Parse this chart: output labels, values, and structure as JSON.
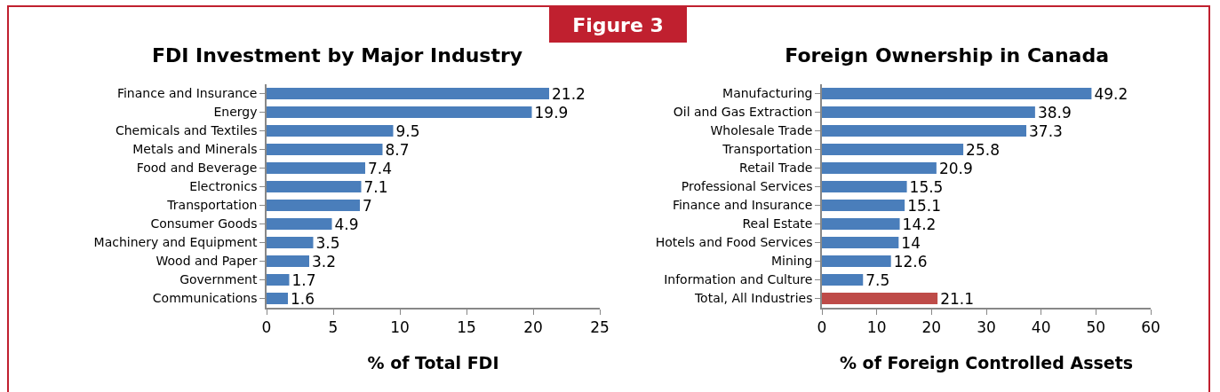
{
  "chart_data": [
    {
      "type": "bar",
      "orientation": "horizontal",
      "title": "FDI Investment by Major Industry",
      "xlabel": "% of Total FDI",
      "annotations": [
        "Figure 3"
      ],
      "categories": [
        "Finance and Insurance",
        "Energy",
        "Chemicals and Textiles",
        "Metals and Minerals",
        "Food and Beverage",
        "Electronics",
        "Transportation",
        "Consumer Goods",
        "Machinery and Equipment",
        "Wood and Paper",
        "Government",
        "Communications"
      ],
      "values": [
        21.2,
        19.9,
        9.5,
        8.7,
        7.4,
        7.1,
        7,
        4.9,
        3.5,
        3.2,
        1.7,
        1.6
      ],
      "color": "#4a7ebb",
      "xlim": [
        0,
        25
      ],
      "xticks": [
        0,
        5,
        10,
        15,
        20,
        25
      ],
      "data_labels": true
    },
    {
      "type": "bar",
      "orientation": "horizontal",
      "title": "Foreign Ownership in Canada",
      "xlabel": "% of Foreign Controlled Assets",
      "categories": [
        "Manufacturing",
        "Oil and Gas Extraction",
        "Wholesale Trade",
        "Transportation",
        "Retail Trade",
        "Professional Services",
        "Finance and Insurance",
        "Real Estate",
        "Hotels and Food Services",
        "Mining",
        "Information and Culture",
        "Total, All Industries"
      ],
      "values": [
        49.2,
        38.9,
        37.3,
        25.8,
        20.9,
        15.5,
        15.1,
        14.2,
        14,
        12.6,
        7.5,
        21.1
      ],
      "colors": [
        "#4a7ebb",
        "#4a7ebb",
        "#4a7ebb",
        "#4a7ebb",
        "#4a7ebb",
        "#4a7ebb",
        "#4a7ebb",
        "#4a7ebb",
        "#4a7ebb",
        "#4a7ebb",
        "#4a7ebb",
        "#be4b48"
      ],
      "xlim": [
        0,
        60
      ],
      "xticks": [
        0,
        10,
        20,
        30,
        40,
        50,
        60
      ],
      "data_labels": true
    }
  ]
}
